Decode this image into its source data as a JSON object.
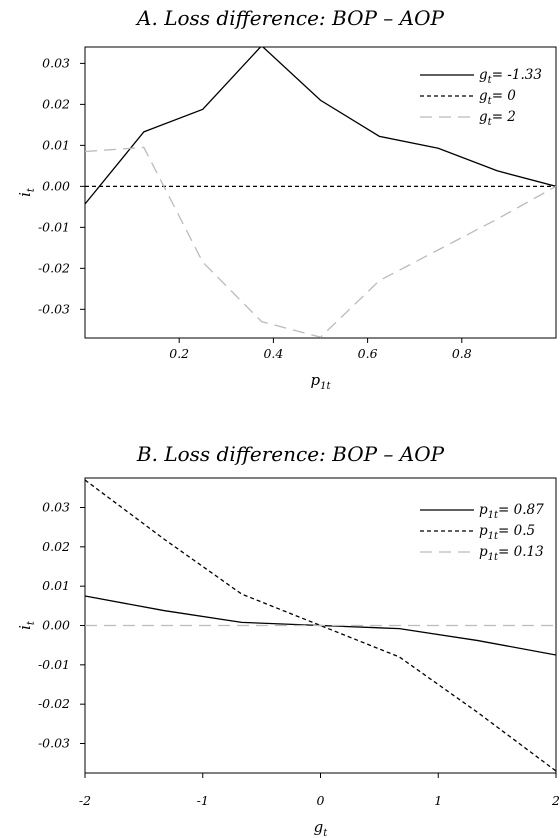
{
  "chart_data": [
    {
      "type": "line",
      "title": "A. Loss difference: BOP – AOP",
      "xlabel_main": "p",
      "xlabel_sub": "1t",
      "ylabel_main": "i",
      "ylabel_sub": "t",
      "xlim": [
        0.0,
        1.0
      ],
      "ylim": [
        -0.037,
        0.034
      ],
      "x_ticks": [
        0.2,
        0.4,
        0.6,
        0.8
      ],
      "x_tick_labels": [
        "0.2",
        "0.4",
        "0.6",
        "0.8"
      ],
      "y_ticks": [
        0.03,
        0.02,
        0.01,
        0.0,
        -0.01,
        -0.02,
        -0.03
      ],
      "y_tick_labels": [
        "0.03",
        "0.02",
        "0.01",
        "0.00",
        "-0.01",
        "-0.02",
        "-0.03"
      ],
      "legend_position": "top-right",
      "grid": false,
      "series": [
        {
          "name_main": "g",
          "name_sub": "t",
          "name_value": "= -1.33",
          "style": "solid",
          "color": "#000000",
          "x": [
            0.0,
            0.125,
            0.25,
            0.375,
            0.5,
            0.625,
            0.75,
            0.875,
            1.0
          ],
          "y": [
            -0.0043,
            0.0133,
            0.0188,
            0.0343,
            0.021,
            0.0122,
            0.0093,
            0.0038,
            0.0
          ]
        },
        {
          "name_main": "g",
          "name_sub": "t",
          "name_value": "= 0",
          "style": "dashed",
          "color": "#000000",
          "x": [
            0.0,
            1.0
          ],
          "y": [
            0.0,
            0.0
          ]
        },
        {
          "name_main": "g",
          "name_sub": "t",
          "name_value": "= 2",
          "style": "longdash",
          "color": "#bbbbbb",
          "x": [
            0.0,
            0.125,
            0.25,
            0.375,
            0.5,
            0.625,
            0.75,
            0.875,
            1.0
          ],
          "y": [
            0.0085,
            0.0095,
            -0.0185,
            -0.033,
            -0.0368,
            -0.023,
            -0.0155,
            -0.008,
            0.0
          ]
        }
      ]
    },
    {
      "type": "line",
      "title": "B. Loss difference: BOP – AOP",
      "xlabel_main": "g",
      "xlabel_sub": "t",
      "ylabel_main": "i",
      "ylabel_sub": "t",
      "xlim": [
        -2,
        2
      ],
      "ylim": [
        -0.0375,
        0.0375
      ],
      "x_ticks": [
        -2,
        -1,
        0,
        1,
        2
      ],
      "x_tick_labels": [
        "-2",
        "-1",
        "0",
        "1",
        "2"
      ],
      "y_ticks": [
        0.03,
        0.02,
        0.01,
        0.0,
        -0.01,
        -0.02,
        -0.03
      ],
      "y_tick_labels": [
        "0.03",
        "0.02",
        "0.01",
        "0.00",
        "-0.01",
        "-0.02",
        "-0.03"
      ],
      "legend_position": "top-right",
      "grid": false,
      "series": [
        {
          "name_main": "p",
          "name_sub": "1t",
          "name_value": "= 0.87",
          "style": "solid",
          "color": "#000000",
          "x": [
            -2,
            -1.33,
            -0.67,
            0,
            0.67,
            1.33,
            2
          ],
          "y": [
            0.0075,
            0.0038,
            0.0008,
            0.0,
            -0.0008,
            -0.0038,
            -0.0075
          ]
        },
        {
          "name_main": "p",
          "name_sub": "1t",
          "name_value": "= 0.5",
          "style": "dashed",
          "color": "#000000",
          "x": [
            -2,
            -1.33,
            -0.67,
            0,
            0.67,
            1.33,
            2
          ],
          "y": [
            0.037,
            0.022,
            0.008,
            0.0,
            -0.008,
            -0.022,
            -0.037
          ]
        },
        {
          "name_main": "p",
          "name_sub": "1t",
          "name_value": "= 0.13",
          "style": "longdash",
          "color": "#bbbbbb",
          "x": [
            -2,
            2
          ],
          "y": [
            0.0,
            0.0
          ]
        }
      ]
    }
  ]
}
